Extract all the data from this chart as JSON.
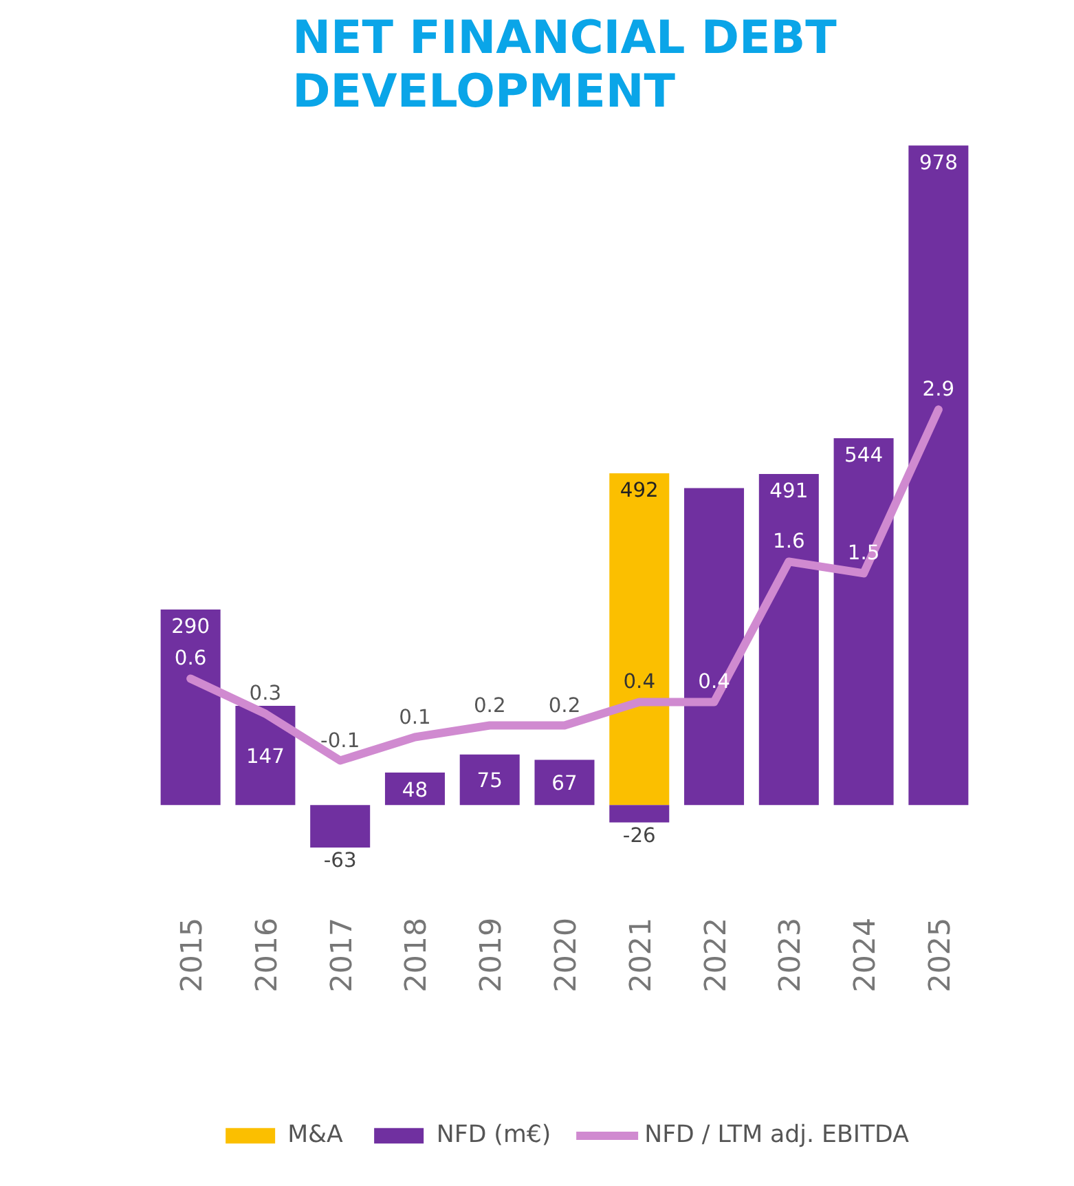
{
  "chart_data": {
    "type": "bar",
    "title": "NET FINANCIAL DEBT\nDEVELOPMENT",
    "categories": [
      "2015",
      "2016",
      "2017",
      "2018",
      "2019",
      "2020",
      "2021",
      "2022",
      "2023",
      "2024",
      "2025"
    ],
    "stacked": true,
    "series": [
      {
        "name": "M&A",
        "color": "#fbbf00",
        "values": [
          null,
          null,
          null,
          null,
          null,
          null,
          492,
          null,
          null,
          null,
          null
        ],
        "value_labels": [
          null,
          null,
          null,
          null,
          null,
          null,
          "492",
          null,
          null,
          null,
          null
        ]
      },
      {
        "name": "NFD (m€)",
        "color": "#7030a0",
        "values": [
          290,
          147,
          -63,
          48,
          75,
          67,
          -26,
          470,
          491,
          544,
          978
        ],
        "value_labels": [
          "290",
          "147",
          "-63",
          "48",
          "75",
          "67",
          "-26",
          null,
          "491",
          "544",
          "978"
        ]
      },
      {
        "name": "NFD / LTM adj. EBITDA",
        "type": "line",
        "axis": "y2",
        "color": "#d08ad0",
        "values": [
          0.6,
          0.3,
          -0.1,
          0.1,
          0.2,
          0.2,
          0.4,
          0.4,
          1.6,
          1.5,
          2.9
        ],
        "value_labels": [
          "0.6",
          "0.3",
          "-0.1",
          "0.1",
          "0.2",
          "0.2",
          "0.4",
          "0.4",
          "1.6",
          "1.5",
          "2.9"
        ]
      }
    ],
    "tick_labels": "x",
    "grid": false,
    "legend": "bottom"
  }
}
